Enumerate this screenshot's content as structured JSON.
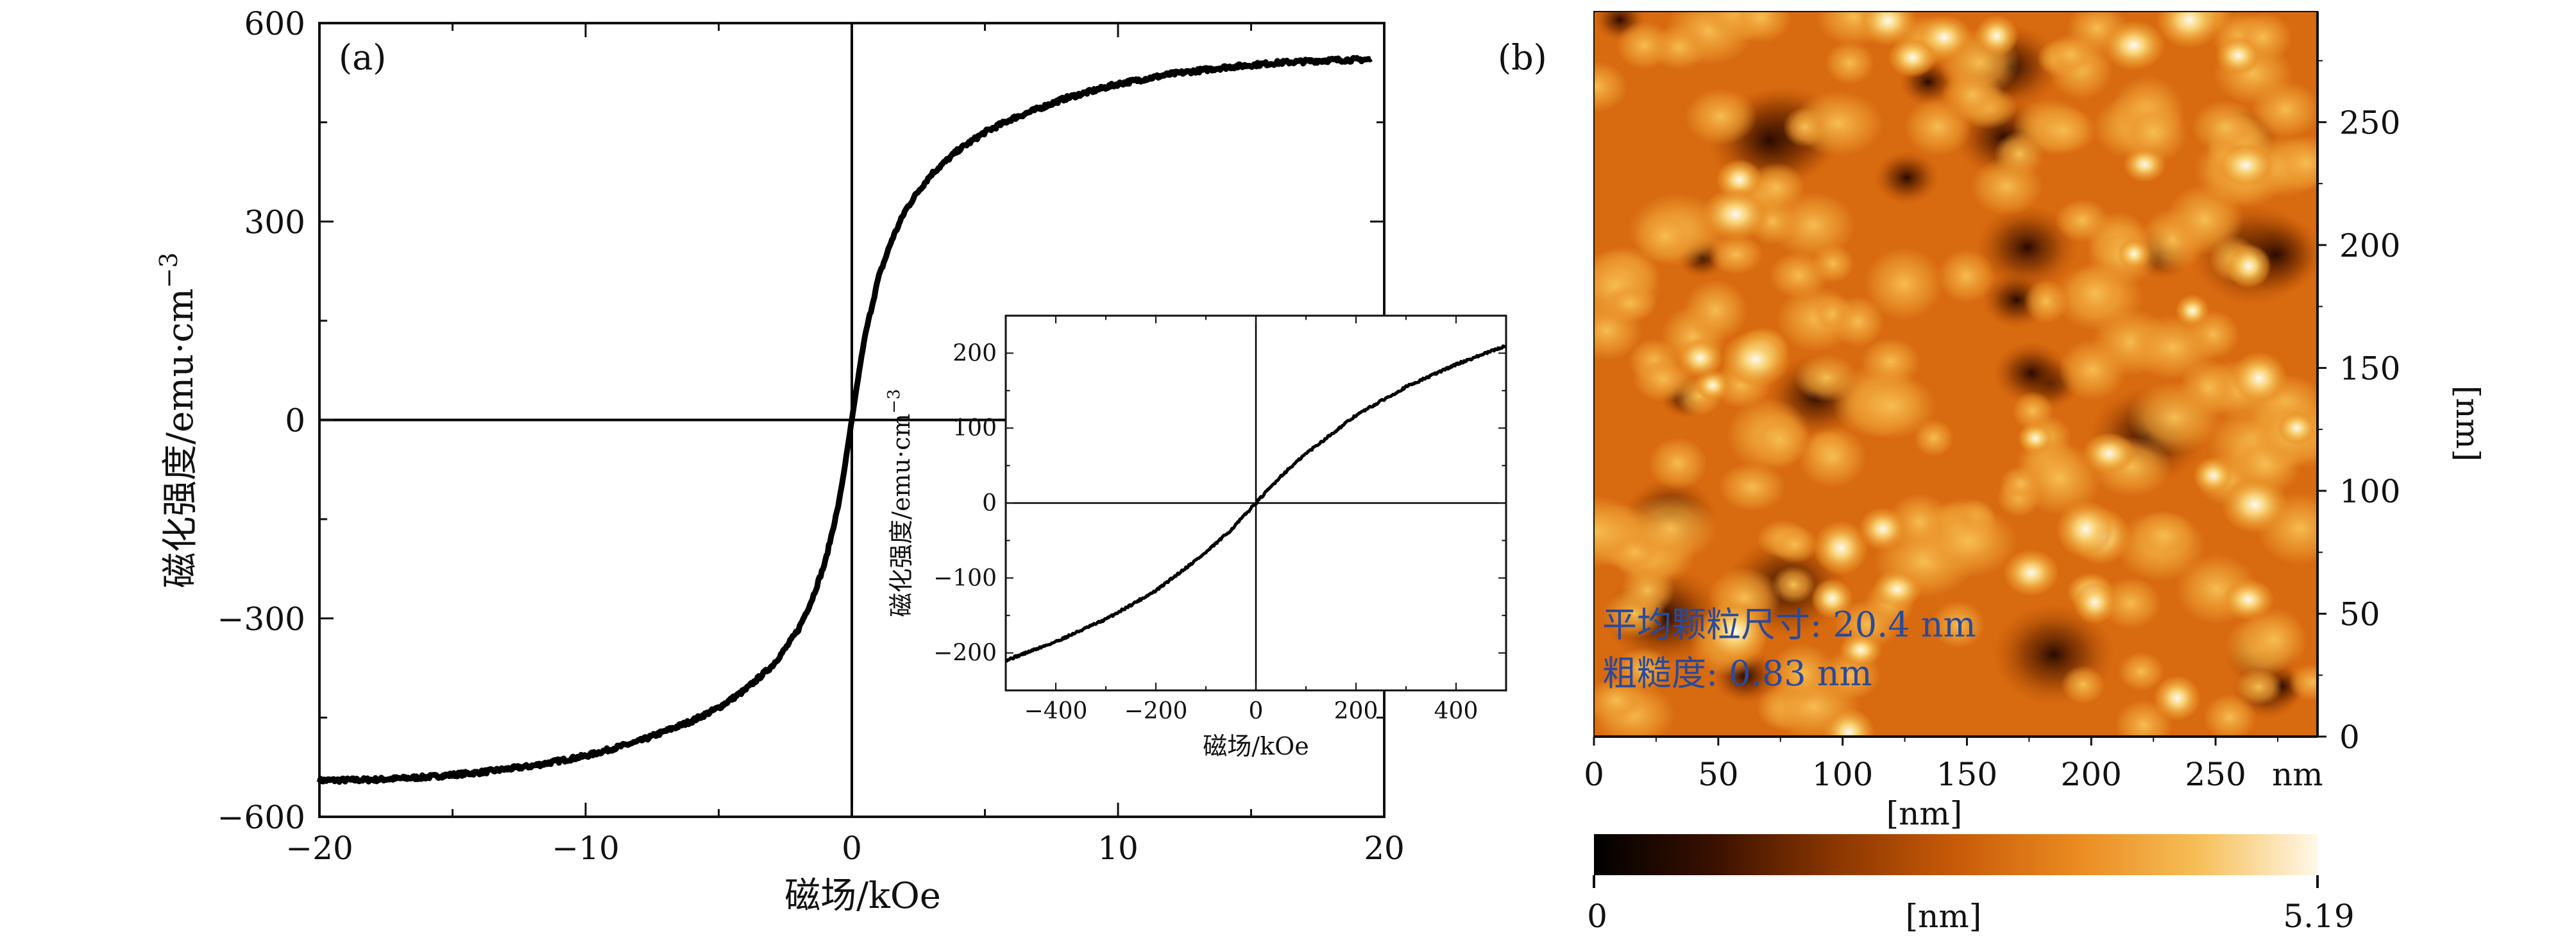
{
  "panel_a": {
    "tag": "(a)",
    "xlabel": "磁场/kOe",
    "ylabel": "磁化强度/emu·cm",
    "ylabel_exp": "−3",
    "xticks": [
      "−20",
      "−10",
      "0",
      "10",
      "20"
    ],
    "yticks": [
      "−600",
      "−300",
      "0",
      "300",
      "600"
    ],
    "inset": {
      "xlabel": "磁场/kOe",
      "ylabel": "磁化强度/emu·cm",
      "ylabel_exp": "−3",
      "xticks": [
        "−400",
        "−200",
        "0",
        "200",
        "400"
      ],
      "yticks": [
        "−200",
        "−100",
        "0",
        "100",
        "200"
      ]
    }
  },
  "panel_b": {
    "tag": "(b)",
    "x_tick_labels": [
      "0",
      "50",
      "100",
      "150",
      "200",
      "250"
    ],
    "x_unit_inline": "nm",
    "xlabel": "[nm]",
    "y_tick_labels": [
      "0",
      "50",
      "100",
      "150",
      "200",
      "250"
    ],
    "ylabel": "[nm]",
    "annotation_line1": "平均颗粒尺寸: 20.4 nm",
    "annotation_line2": "粗糙度: 0.83 nm",
    "colorbar": {
      "min_label": "0",
      "max_label": "5.19",
      "unit_label": "[nm]",
      "colors": [
        "#000000",
        "#3a1000",
        "#8a3600",
        "#c85a08",
        "#ea8a20",
        "#f6be56",
        "#fff8e8"
      ]
    }
  },
  "chart_data": [
    {
      "type": "line",
      "title": "",
      "xlabel": "磁场/kOe",
      "ylabel": "磁化强度/emu·cm−3",
      "xlim": [
        -20,
        20
      ],
      "ylim": [
        -600,
        600
      ],
      "grid": false,
      "series": [
        {
          "x": [
            -20,
            -18,
            -16,
            -14,
            -12,
            -10,
            -8,
            -6,
            -5,
            -4,
            -3,
            -2.5,
            -2,
            -1.5,
            -1,
            -0.5,
            -0.3,
            0,
            0.3,
            0.5,
            1,
            1.5,
            2,
            2.5,
            3,
            4,
            5,
            6,
            8,
            10,
            12,
            14,
            16,
            18,
            19.5
          ],
          "y": [
            -545,
            -544,
            -540,
            -533,
            -523,
            -508,
            -486,
            -455,
            -435,
            -408,
            -372,
            -346,
            -316,
            -272,
            -215,
            -128,
            -80,
            0,
            80,
            128,
            215,
            272,
            316,
            346,
            372,
            408,
            435,
            455,
            486,
            508,
            523,
            533,
            540,
            544,
            545
          ]
        }
      ]
    },
    {
      "type": "line",
      "title": "",
      "xlabel": "磁场/kOe",
      "ylabel": "磁化强度/emu·cm−3",
      "xlim": [
        -500,
        500
      ],
      "ylim": [
        -250,
        250
      ],
      "grid": false,
      "series": [
        {
          "x": [
            -500,
            -400,
            -300,
            -200,
            -100,
            -50,
            0,
            50,
            100,
            200,
            300,
            400,
            500
          ],
          "y": [
            -210,
            -185,
            -155,
            -117,
            -66,
            -36,
            0,
            36,
            66,
            117,
            155,
            185,
            210
          ]
        }
      ]
    },
    {
      "type": "heatmap",
      "title": "",
      "xlabel": "[nm]",
      "ylabel": "[nm]",
      "xlim": [
        0,
        300
      ],
      "ylim": [
        0,
        300
      ],
      "colorbar_range": [
        0,
        5.19
      ],
      "values": []
    }
  ]
}
